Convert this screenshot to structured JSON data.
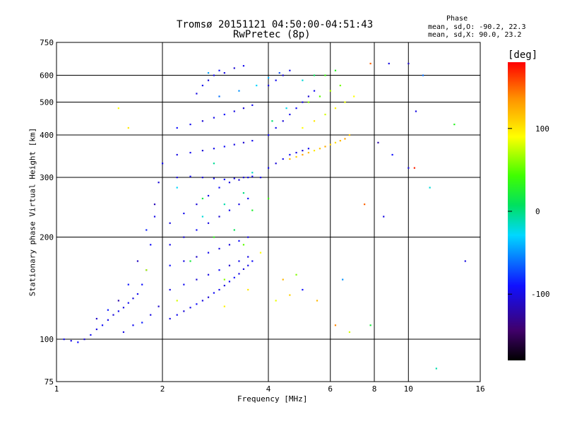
{
  "chart_data": {
    "type": "scatter",
    "title": "Tromsø 20151121 04:50:00-04:51:43",
    "subtitle": "RwPretec (8p)",
    "xlabel": "Frequency [MHz]",
    "ylabel": "Stationary phase Virtual Height [km]",
    "x_scale": "log",
    "y_scale": "log",
    "xlim": [
      1,
      16
    ],
    "ylim": [
      75,
      750
    ],
    "x_ticks": [
      1,
      2,
      4,
      6,
      8,
      10,
      16
    ],
    "y_ticks": [
      75,
      100,
      200,
      300,
      400,
      500,
      600,
      750
    ],
    "x_grid": [
      2,
      4,
      6,
      8,
      10
    ],
    "y_grid": [
      100,
      200,
      300,
      400,
      500,
      600
    ],
    "grid": true,
    "stats": {
      "heading": "Phase",
      "line1": "mean, sd,O: -90.2, 22.3",
      "line2": "mean, sd,X:  90.0, 23.2"
    },
    "colorbar": {
      "label": "[deg]",
      "range": [
        -180,
        180
      ],
      "ticks": [
        100,
        0,
        -100
      ]
    },
    "series": [
      {
        "points": [
          [
            1.05,
            100,
            -95
          ],
          [
            1.1,
            99,
            -100
          ],
          [
            1.15,
            98,
            -90
          ],
          [
            1.2,
            100,
            -105
          ],
          [
            1.25,
            103,
            -95
          ],
          [
            1.3,
            107,
            -100
          ],
          [
            1.35,
            110,
            -92
          ],
          [
            1.4,
            114,
            -98
          ],
          [
            1.45,
            118,
            -104
          ],
          [
            1.5,
            121,
            -96
          ],
          [
            1.55,
            124,
            -100
          ],
          [
            1.6,
            128,
            -94
          ],
          [
            1.65,
            132,
            -102
          ],
          [
            1.7,
            136,
            -96
          ],
          [
            1.75,
            145,
            -90
          ],
          [
            1.8,
            160,
            -100
          ],
          [
            1.85,
            190,
            -92
          ],
          [
            1.9,
            230,
            -98
          ],
          [
            1.95,
            290,
            -104
          ],
          [
            2.0,
            330,
            -96
          ],
          [
            1.3,
            115,
            -110
          ],
          [
            1.4,
            122,
            -86
          ],
          [
            1.5,
            130,
            -120
          ],
          [
            1.6,
            145,
            -88
          ],
          [
            1.7,
            170,
            -112
          ],
          [
            1.8,
            210,
            -84
          ],
          [
            1.9,
            250,
            -116
          ],
          [
            1.55,
            105,
            -100
          ],
          [
            1.65,
            110,
            -95
          ],
          [
            1.75,
            112,
            -85
          ],
          [
            1.85,
            118,
            -100
          ],
          [
            1.95,
            125,
            -108
          ],
          [
            2.1,
            115,
            -100
          ],
          [
            2.2,
            118,
            -96
          ],
          [
            2.3,
            121,
            -104
          ],
          [
            2.4,
            124,
            -98
          ],
          [
            2.5,
            127,
            -92
          ],
          [
            2.6,
            130,
            -100
          ],
          [
            2.7,
            133,
            -106
          ],
          [
            2.8,
            137,
            -94
          ],
          [
            2.9,
            140,
            -98
          ],
          [
            3.0,
            144,
            -102
          ],
          [
            3.1,
            148,
            -96
          ],
          [
            3.2,
            152,
            -90
          ],
          [
            3.3,
            156,
            -100
          ],
          [
            3.4,
            161,
            -104
          ],
          [
            3.5,
            165,
            -98
          ],
          [
            3.6,
            170,
            -92
          ],
          [
            2.1,
            140,
            -100
          ],
          [
            2.3,
            145,
            -95
          ],
          [
            2.5,
            150,
            -105
          ],
          [
            2.7,
            155,
            -100
          ],
          [
            2.9,
            160,
            -92
          ],
          [
            3.1,
            165,
            -108
          ],
          [
            3.3,
            170,
            -96
          ],
          [
            3.5,
            175,
            -100
          ],
          [
            2.1,
            165,
            -90
          ],
          [
            2.3,
            170,
            -100
          ],
          [
            2.5,
            175,
            -110
          ],
          [
            2.7,
            180,
            -96
          ],
          [
            2.9,
            185,
            -100
          ],
          [
            3.1,
            190,
            -104
          ],
          [
            3.3,
            195,
            -92
          ],
          [
            3.5,
            200,
            -100
          ],
          [
            2.1,
            190,
            -98
          ],
          [
            2.3,
            200,
            -104
          ],
          [
            2.5,
            210,
            -92
          ],
          [
            2.7,
            220,
            -100
          ],
          [
            2.9,
            230,
            -106
          ],
          [
            3.1,
            240,
            -96
          ],
          [
            3.3,
            250,
            -100
          ],
          [
            3.5,
            260,
            -94
          ],
          [
            2.1,
            220,
            -100
          ],
          [
            2.3,
            235,
            -96
          ],
          [
            2.5,
            250,
            -104
          ],
          [
            2.7,
            265,
            -98
          ],
          [
            2.9,
            280,
            -92
          ],
          [
            3.1,
            290,
            -100
          ],
          [
            3.3,
            295,
            -106
          ],
          [
            3.5,
            300,
            -96
          ],
          [
            2.2,
            300,
            -100
          ],
          [
            2.4,
            302,
            -96
          ],
          [
            2.6,
            300,
            -104
          ],
          [
            2.8,
            298,
            -98
          ],
          [
            3.0,
            296,
            -92
          ],
          [
            3.2,
            298,
            -100
          ],
          [
            3.4,
            300,
            -106
          ],
          [
            3.6,
            302,
            -96
          ],
          [
            2.2,
            350,
            -100
          ],
          [
            2.4,
            355,
            -96
          ],
          [
            2.6,
            360,
            -104
          ],
          [
            2.8,
            365,
            -98
          ],
          [
            3.0,
            370,
            -92
          ],
          [
            3.2,
            375,
            -100
          ],
          [
            3.4,
            380,
            -106
          ],
          [
            3.6,
            385,
            -96
          ],
          [
            2.2,
            420,
            -90
          ],
          [
            2.4,
            430,
            -96
          ],
          [
            2.6,
            440,
            -104
          ],
          [
            2.8,
            450,
            -98
          ],
          [
            3.0,
            460,
            -92
          ],
          [
            3.2,
            470,
            -100
          ],
          [
            3.4,
            480,
            -106
          ],
          [
            3.6,
            490,
            -96
          ],
          [
            2.5,
            530,
            -100
          ],
          [
            2.6,
            560,
            -96
          ],
          [
            2.7,
            580,
            -104
          ],
          [
            2.8,
            600,
            -98
          ],
          [
            2.9,
            620,
            -92
          ],
          [
            3.0,
            610,
            -100
          ],
          [
            3.2,
            630,
            -106
          ],
          [
            3.4,
            640,
            -96
          ],
          [
            3.8,
            300,
            -100
          ],
          [
            4.0,
            320,
            -96
          ],
          [
            4.2,
            330,
            -104
          ],
          [
            4.4,
            340,
            -98
          ],
          [
            4.6,
            350,
            -92
          ],
          [
            4.8,
            355,
            -100
          ],
          [
            5.0,
            360,
            -106
          ],
          [
            5.2,
            365,
            -96
          ],
          [
            4.0,
            400,
            -90
          ],
          [
            4.2,
            420,
            -96
          ],
          [
            4.4,
            440,
            -104
          ],
          [
            4.6,
            460,
            -98
          ],
          [
            4.8,
            480,
            -92
          ],
          [
            5.0,
            500,
            -100
          ],
          [
            5.2,
            520,
            -106
          ],
          [
            5.4,
            540,
            -96
          ],
          [
            4.0,
            560,
            -100
          ],
          [
            4.2,
            580,
            -96
          ],
          [
            4.4,
            600,
            -104
          ],
          [
            4.6,
            620,
            -98
          ],
          [
            4.6,
            340,
            120
          ],
          [
            4.8,
            345,
            110
          ],
          [
            5.0,
            350,
            130
          ],
          [
            5.2,
            355,
            120
          ],
          [
            5.4,
            360,
            100
          ],
          [
            5.6,
            365,
            115
          ],
          [
            5.8,
            370,
            125
          ],
          [
            6.0,
            375,
            110
          ],
          [
            6.2,
            380,
            105
          ],
          [
            6.4,
            385,
            120
          ],
          [
            6.6,
            390,
            130
          ],
          [
            6.8,
            400,
            115
          ],
          [
            5.0,
            420,
            90
          ],
          [
            5.4,
            440,
            100
          ],
          [
            5.8,
            460,
            80
          ],
          [
            6.2,
            480,
            95
          ],
          [
            6.6,
            500,
            85
          ],
          [
            7.0,
            520,
            90
          ],
          [
            5.2,
            500,
            60
          ],
          [
            5.6,
            520,
            50
          ],
          [
            6.0,
            540,
            70
          ],
          [
            6.4,
            560,
            55
          ],
          [
            5.8,
            600,
            40
          ],
          [
            6.2,
            620,
            30
          ],
          [
            2.4,
            170,
            20
          ],
          [
            2.8,
            200,
            35
          ],
          [
            3.2,
            210,
            10
          ],
          [
            3.6,
            240,
            25
          ],
          [
            4.0,
            260,
            40
          ],
          [
            3.4,
            190,
            50
          ],
          [
            3.0,
            150,
            60
          ],
          [
            2.6,
            260,
            15
          ],
          [
            3.8,
            180,
            90
          ],
          [
            3.5,
            140,
            100
          ],
          [
            4.2,
            130,
            85
          ],
          [
            4.6,
            135,
            110
          ],
          [
            3.0,
            125,
            95
          ],
          [
            2.2,
            130,
            80
          ],
          [
            1.8,
            160,
            70
          ],
          [
            4.4,
            150,
            120
          ],
          [
            2.6,
            230,
            -20
          ],
          [
            3.0,
            250,
            -10
          ],
          [
            3.4,
            270,
            0
          ],
          [
            2.2,
            280,
            -30
          ],
          [
            3.6,
            310,
            -15
          ],
          [
            2.8,
            330,
            -5
          ],
          [
            4.1,
            440,
            5
          ],
          [
            4.5,
            480,
            -25
          ],
          [
            2.9,
            520,
            -60
          ],
          [
            3.3,
            540,
            -50
          ],
          [
            4.0,
            590,
            -40
          ],
          [
            4.3,
            610,
            -70
          ],
          [
            3.7,
            560,
            -30
          ],
          [
            2.7,
            610,
            -45
          ],
          [
            5.0,
            580,
            -20
          ],
          [
            5.4,
            600,
            10
          ],
          [
            1.5,
            480,
            90
          ],
          [
            1.6,
            420,
            100
          ],
          [
            7.5,
            250,
            150
          ],
          [
            8.5,
            230,
            -100
          ],
          [
            9.0,
            350,
            -90
          ],
          [
            10.0,
            320,
            -100
          ],
          [
            10.4,
            320,
            170
          ],
          [
            13.5,
            430,
            30
          ],
          [
            14.5,
            170,
            -100
          ],
          [
            11.0,
            600,
            -60
          ],
          [
            10.0,
            650,
            -110
          ],
          [
            8.8,
            650,
            -100
          ],
          [
            7.8,
            650,
            150
          ],
          [
            12.0,
            82,
            -10
          ],
          [
            7.8,
            110,
            20
          ],
          [
            6.8,
            105,
            80
          ],
          [
            6.2,
            110,
            140
          ],
          [
            5.5,
            130,
            120
          ],
          [
            5.0,
            140,
            -90
          ],
          [
            4.8,
            155,
            60
          ],
          [
            6.5,
            150,
            -50
          ],
          [
            8.2,
            380,
            -120
          ],
          [
            10.5,
            470,
            -100
          ],
          [
            11.5,
            280,
            -20
          ]
        ]
      }
    ]
  }
}
